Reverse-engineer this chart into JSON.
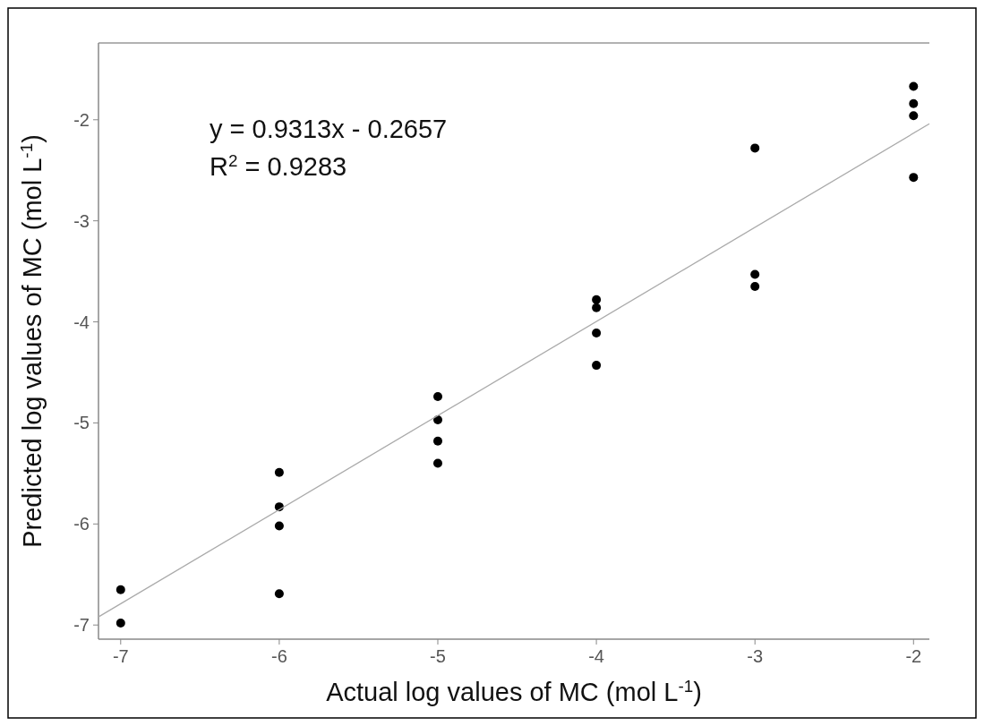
{
  "chart_data": {
    "type": "scatter",
    "xlabel": "Actual log values of MC (mol L$^{-1}$)",
    "ylabel": "Predicted log values of MC (mol L$^{-1}$)",
    "annotations": [
      "y = 0.9313x - 0.2657",
      "R$^{2}$ = 0.9283"
    ],
    "xlim": [
      -7.14,
      -1.9
    ],
    "ylim": [
      -7.14,
      -1.24
    ],
    "xticks": [
      -7,
      -6,
      -5,
      -4,
      -3,
      -2
    ],
    "yticks": [
      -7,
      -6,
      -5,
      -4,
      -3,
      -2
    ],
    "grid": false,
    "series": [
      {
        "marker": "circle",
        "color": "#000000",
        "x": [
          -7,
          -7,
          -6,
          -6,
          -6,
          -6,
          -5,
          -5,
          -5,
          -5,
          -4,
          -4,
          -4,
          -4,
          -3,
          -3,
          -3,
          -2,
          -2,
          -2,
          -2
        ],
        "values": [
          -6.65,
          -6.98,
          -5.49,
          -5.83,
          -6.02,
          -6.69,
          -4.74,
          -4.97,
          -5.18,
          -5.4,
          -3.78,
          -3.86,
          -4.11,
          -4.43,
          -2.28,
          -3.53,
          -3.65,
          -1.67,
          -1.84,
          -1.96,
          -2.57
        ]
      },
      {
        "type": "line",
        "color": "#aaaaaa",
        "x": [
          -7.14,
          -1.9
        ],
        "values": [
          -6.92,
          -2.04
        ]
      }
    ]
  }
}
